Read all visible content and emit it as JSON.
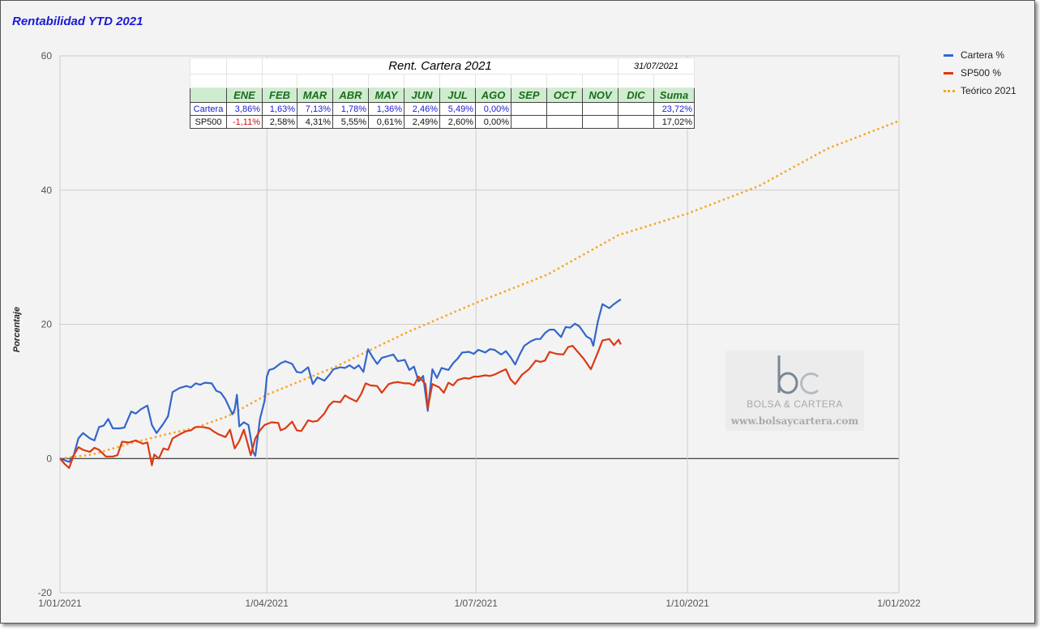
{
  "chart_data": {
    "type": "line",
    "title": "Rentabilidad YTD 2021",
    "ylabel": "Porcentaje",
    "xlabel": "",
    "x_range": [
      "2021-01-01",
      "2022-01-01"
    ],
    "x_ticks": [
      "1/01/2021",
      "1/04/2021",
      "1/07/2021",
      "1/10/2021",
      "1/01/2022"
    ],
    "ylim": [
      -20,
      60
    ],
    "y_ticks": [
      "-20",
      "0",
      "20",
      "40",
      "60"
    ],
    "grid": true,
    "legend_position": "right",
    "series": [
      {
        "name": "Cartera %",
        "color": "#3366cc",
        "style": "solid",
        "points": [
          [
            "2021-01-01",
            0.0
          ],
          [
            "2021-01-05",
            -0.5
          ],
          [
            "2021-01-07",
            0.5
          ],
          [
            "2021-01-09",
            3.0
          ],
          [
            "2021-01-11",
            3.8
          ],
          [
            "2021-01-14",
            3.0
          ],
          [
            "2021-01-16",
            2.7
          ],
          [
            "2021-01-18",
            4.7
          ],
          [
            "2021-01-20",
            4.9
          ],
          [
            "2021-01-22",
            5.9
          ],
          [
            "2021-01-24",
            4.5
          ],
          [
            "2021-01-27",
            4.5
          ],
          [
            "2021-01-29",
            4.6
          ],
          [
            "2021-02-01",
            7.0
          ],
          [
            "2021-02-03",
            6.7
          ],
          [
            "2021-02-05",
            7.3
          ],
          [
            "2021-02-08",
            7.9
          ],
          [
            "2021-02-10",
            5.0
          ],
          [
            "2021-02-12",
            3.8
          ],
          [
            "2021-02-15",
            5.2
          ],
          [
            "2021-02-17",
            6.3
          ],
          [
            "2021-02-19",
            9.9
          ],
          [
            "2021-02-22",
            10.5
          ],
          [
            "2021-02-25",
            10.8
          ],
          [
            "2021-02-27",
            10.6
          ],
          [
            "2021-03-01",
            11.2
          ],
          [
            "2021-03-03",
            11.0
          ],
          [
            "2021-03-05",
            11.3
          ],
          [
            "2021-03-08",
            11.2
          ],
          [
            "2021-03-10",
            10.1
          ],
          [
            "2021-03-12",
            9.8
          ],
          [
            "2021-03-14",
            8.8
          ],
          [
            "2021-03-17",
            6.6
          ],
          [
            "2021-03-18",
            7.3
          ],
          [
            "2021-03-19",
            9.5
          ],
          [
            "2021-03-20",
            4.8
          ],
          [
            "2021-03-22",
            5.4
          ],
          [
            "2021-03-24",
            5.0
          ],
          [
            "2021-03-26",
            1.0
          ],
          [
            "2021-03-27",
            0.4
          ],
          [
            "2021-03-29",
            5.9
          ],
          [
            "2021-03-31",
            8.6
          ],
          [
            "2021-04-01",
            12.2
          ],
          [
            "2021-04-02",
            13.2
          ],
          [
            "2021-04-04",
            13.4
          ],
          [
            "2021-04-07",
            14.2
          ],
          [
            "2021-04-09",
            14.5
          ],
          [
            "2021-04-12",
            14.1
          ],
          [
            "2021-04-14",
            12.9
          ],
          [
            "2021-04-16",
            12.8
          ],
          [
            "2021-04-19",
            13.6
          ],
          [
            "2021-04-21",
            11.1
          ],
          [
            "2021-04-23",
            12.1
          ],
          [
            "2021-04-26",
            11.6
          ],
          [
            "2021-04-28",
            12.4
          ],
          [
            "2021-04-30",
            13.3
          ],
          [
            "2021-05-03",
            13.6
          ],
          [
            "2021-05-05",
            13.5
          ],
          [
            "2021-05-07",
            13.9
          ],
          [
            "2021-05-09",
            13.4
          ],
          [
            "2021-05-11",
            13.9
          ],
          [
            "2021-05-13",
            12.9
          ],
          [
            "2021-05-15",
            16.3
          ],
          [
            "2021-05-17",
            15.1
          ],
          [
            "2021-05-19",
            14.1
          ],
          [
            "2021-05-21",
            15.0
          ],
          [
            "2021-05-24",
            15.3
          ],
          [
            "2021-05-26",
            15.5
          ],
          [
            "2021-05-28",
            14.5
          ],
          [
            "2021-05-31",
            14.7
          ],
          [
            "2021-06-02",
            13.2
          ],
          [
            "2021-06-04",
            13.7
          ],
          [
            "2021-06-06",
            11.5
          ],
          [
            "2021-06-08",
            12.3
          ],
          [
            "2021-06-10",
            7.1
          ],
          [
            "2021-06-12",
            13.3
          ],
          [
            "2021-06-14",
            12.0
          ],
          [
            "2021-06-16",
            13.5
          ],
          [
            "2021-06-19",
            13.2
          ],
          [
            "2021-06-21",
            14.2
          ],
          [
            "2021-06-23",
            14.9
          ],
          [
            "2021-06-25",
            15.8
          ],
          [
            "2021-06-28",
            15.9
          ],
          [
            "2021-06-30",
            15.6
          ],
          [
            "2021-07-02",
            16.2
          ],
          [
            "2021-07-05",
            15.8
          ],
          [
            "2021-07-07",
            16.3
          ],
          [
            "2021-07-09",
            16.2
          ],
          [
            "2021-07-12",
            15.5
          ],
          [
            "2021-07-14",
            16.0
          ],
          [
            "2021-07-16",
            15.1
          ],
          [
            "2021-07-18",
            14.0
          ],
          [
            "2021-07-20",
            15.5
          ],
          [
            "2021-07-22",
            16.8
          ],
          [
            "2021-07-25",
            17.5
          ],
          [
            "2021-07-27",
            17.8
          ],
          [
            "2021-07-29",
            17.8
          ],
          [
            "2021-07-31",
            18.7
          ],
          [
            "2021-08-02",
            19.2
          ],
          [
            "2021-08-04",
            19.2
          ],
          [
            "2021-08-07",
            18.1
          ],
          [
            "2021-08-09",
            19.6
          ],
          [
            "2021-08-11",
            19.5
          ],
          [
            "2021-08-13",
            20.1
          ],
          [
            "2021-08-15",
            19.7
          ],
          [
            "2021-08-18",
            18.2
          ],
          [
            "2021-08-20",
            17.8
          ],
          [
            "2021-08-21",
            16.8
          ],
          [
            "2021-08-23",
            20.4
          ],
          [
            "2021-08-25",
            23.0
          ],
          [
            "2021-08-28",
            22.4
          ],
          [
            "2021-08-30",
            23.0
          ],
          [
            "2021-09-01",
            23.5
          ],
          [
            "2021-09-02",
            23.7
          ]
        ]
      },
      {
        "name": "SP500 %",
        "color": "#dc3912",
        "style": "solid",
        "points": [
          [
            "2021-01-01",
            0.0
          ],
          [
            "2021-01-03",
            -0.8
          ],
          [
            "2021-01-05",
            -1.4
          ],
          [
            "2021-01-07",
            0.5
          ],
          [
            "2021-01-09",
            1.7
          ],
          [
            "2021-01-11",
            1.3
          ],
          [
            "2021-01-14",
            1.0
          ],
          [
            "2021-01-16",
            1.6
          ],
          [
            "2021-01-18",
            1.3
          ],
          [
            "2021-01-21",
            0.3
          ],
          [
            "2021-01-24",
            0.3
          ],
          [
            "2021-01-26",
            0.5
          ],
          [
            "2021-01-28",
            2.5
          ],
          [
            "2021-01-31",
            2.4
          ],
          [
            "2021-02-03",
            2.7
          ],
          [
            "2021-02-06",
            2.2
          ],
          [
            "2021-02-08",
            2.4
          ],
          [
            "2021-02-10",
            -1.0
          ],
          [
            "2021-02-11",
            0.6
          ],
          [
            "2021-02-13",
            0.0
          ],
          [
            "2021-02-15",
            1.5
          ],
          [
            "2021-02-17",
            1.3
          ],
          [
            "2021-02-19",
            3.0
          ],
          [
            "2021-02-22",
            3.6
          ],
          [
            "2021-02-25",
            4.1
          ],
          [
            "2021-02-27",
            4.2
          ],
          [
            "2021-03-01",
            4.7
          ],
          [
            "2021-03-04",
            4.7
          ],
          [
            "2021-03-07",
            4.5
          ],
          [
            "2021-03-09",
            4.0
          ],
          [
            "2021-03-11",
            3.6
          ],
          [
            "2021-03-14",
            3.2
          ],
          [
            "2021-03-16",
            4.3
          ],
          [
            "2021-03-18",
            1.5
          ],
          [
            "2021-03-20",
            2.6
          ],
          [
            "2021-03-22",
            4.3
          ],
          [
            "2021-03-25",
            0.5
          ],
          [
            "2021-03-27",
            3.0
          ],
          [
            "2021-03-29",
            4.2
          ],
          [
            "2021-03-31",
            5.0
          ],
          [
            "2021-04-03",
            5.4
          ],
          [
            "2021-04-06",
            5.3
          ],
          [
            "2021-04-07",
            4.2
          ],
          [
            "2021-04-09",
            4.5
          ],
          [
            "2021-04-12",
            5.5
          ],
          [
            "2021-04-14",
            4.2
          ],
          [
            "2021-04-16",
            4.1
          ],
          [
            "2021-04-19",
            5.7
          ],
          [
            "2021-04-21",
            5.5
          ],
          [
            "2021-04-23",
            5.6
          ],
          [
            "2021-04-26",
            6.7
          ],
          [
            "2021-04-28",
            7.9
          ],
          [
            "2021-04-30",
            8.5
          ],
          [
            "2021-05-03",
            8.4
          ],
          [
            "2021-05-05",
            9.4
          ],
          [
            "2021-05-07",
            9.0
          ],
          [
            "2021-05-10",
            8.5
          ],
          [
            "2021-05-12",
            9.6
          ],
          [
            "2021-05-14",
            11.2
          ],
          [
            "2021-05-16",
            10.9
          ],
          [
            "2021-05-19",
            10.8
          ],
          [
            "2021-05-21",
            9.8
          ],
          [
            "2021-05-24",
            11.1
          ],
          [
            "2021-05-26",
            11.3
          ],
          [
            "2021-05-28",
            11.4
          ],
          [
            "2021-05-31",
            11.2
          ],
          [
            "2021-06-02",
            11.2
          ],
          [
            "2021-06-04",
            10.9
          ],
          [
            "2021-06-06",
            12.2
          ],
          [
            "2021-06-09",
            11.1
          ],
          [
            "2021-06-10",
            7.5
          ],
          [
            "2021-06-12",
            11.1
          ],
          [
            "2021-06-15",
            10.6
          ],
          [
            "2021-06-17",
            9.8
          ],
          [
            "2021-06-19",
            11.3
          ],
          [
            "2021-06-21",
            10.9
          ],
          [
            "2021-06-23",
            11.7
          ],
          [
            "2021-06-26",
            12.0
          ],
          [
            "2021-06-28",
            11.9
          ],
          [
            "2021-06-30",
            12.2
          ],
          [
            "2021-07-02",
            12.2
          ],
          [
            "2021-07-05",
            12.4
          ],
          [
            "2021-07-07",
            12.3
          ],
          [
            "2021-07-09",
            12.5
          ],
          [
            "2021-07-12",
            13.0
          ],
          [
            "2021-07-14",
            13.3
          ],
          [
            "2021-07-16",
            11.8
          ],
          [
            "2021-07-18",
            11.1
          ],
          [
            "2021-07-21",
            12.5
          ],
          [
            "2021-07-24",
            13.3
          ],
          [
            "2021-07-27",
            14.6
          ],
          [
            "2021-07-29",
            14.4
          ],
          [
            "2021-07-31",
            14.6
          ],
          [
            "2021-08-02",
            15.9
          ],
          [
            "2021-08-05",
            15.6
          ],
          [
            "2021-08-08",
            15.5
          ],
          [
            "2021-08-10",
            16.6
          ],
          [
            "2021-08-12",
            16.8
          ],
          [
            "2021-08-14",
            16.0
          ],
          [
            "2021-08-17",
            14.8
          ],
          [
            "2021-08-20",
            13.3
          ],
          [
            "2021-08-23",
            15.8
          ],
          [
            "2021-08-25",
            17.6
          ],
          [
            "2021-08-28",
            17.8
          ],
          [
            "2021-08-30",
            16.9
          ],
          [
            "2021-09-01",
            17.7
          ],
          [
            "2021-09-02",
            17.0
          ]
        ]
      },
      {
        "name": "Teórico 2021",
        "color": "#f5a623",
        "style": "dotted",
        "points": [
          [
            "2021-01-01",
            0.0
          ],
          [
            "2021-01-15",
            0.6
          ],
          [
            "2021-02-01",
            2.3
          ],
          [
            "2021-02-15",
            3.5
          ],
          [
            "2021-03-01",
            4.6
          ],
          [
            "2021-03-15",
            6.3
          ],
          [
            "2021-04-01",
            9.5
          ],
          [
            "2021-05-01",
            13.7
          ],
          [
            "2021-06-01",
            18.8
          ],
          [
            "2021-07-01",
            23.2
          ],
          [
            "2021-08-01",
            27.4
          ],
          [
            "2021-09-01",
            33.3
          ],
          [
            "2021-10-01",
            36.5
          ],
          [
            "2021-11-01",
            40.6
          ],
          [
            "2021-12-01",
            46.2
          ],
          [
            "2022-01-01",
            50.3
          ]
        ]
      }
    ]
  },
  "table": {
    "title": "Rent. Cartera 2021",
    "date": "31/07/2021",
    "headers": [
      "ENE",
      "FEB",
      "MAR",
      "ABR",
      "MAY",
      "JUN",
      "JUL",
      "AGO",
      "SEP",
      "OCT",
      "NOV",
      "DIC",
      "Suma"
    ],
    "rows": [
      {
        "label": "Cartera",
        "values": [
          "3,86%",
          "1,63%",
          "7,13%",
          "1,78%",
          "1,36%",
          "2,46%",
          "5,49%",
          "0,00%",
          "",
          "",
          "",
          "",
          "23,72%"
        ]
      },
      {
        "label": "SP500",
        "values": [
          "-1,11%",
          "2,58%",
          "4,31%",
          "5,55%",
          "0,61%",
          "2,49%",
          "2,60%",
          "0,00%",
          "",
          "",
          "",
          "",
          "17,02%"
        ]
      }
    ]
  },
  "watermark": {
    "logo_text": "bc",
    "name": "BOLSA & CARTERA",
    "url": "www.bolsaycartera.com"
  },
  "colors": {
    "title": "#1a1ad6",
    "header_bg": "#cfeccf",
    "header_text": "#1d6b1d",
    "negative": "#d01010"
  }
}
